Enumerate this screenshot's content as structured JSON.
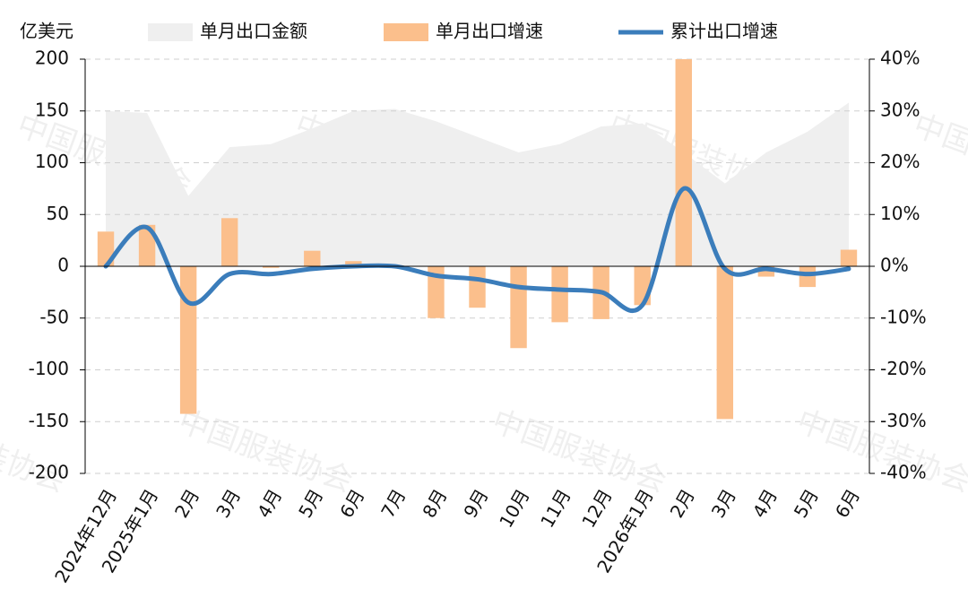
{
  "chart_data": {
    "type": "combo",
    "y_unit": "亿美元",
    "watermark": "中国服装协会",
    "categories": [
      "2024年12月",
      "2025年1月",
      "2月",
      "3月",
      "4月",
      "5月",
      "6月",
      "7月",
      "8月",
      "9月",
      "10月",
      "11月",
      "12月",
      "2026年1月",
      "2月",
      "3月",
      "4月",
      "5月",
      "6月"
    ],
    "series": [
      {
        "name": "单月出口金额",
        "type": "area",
        "color": "#efefef",
        "axis": "y",
        "values": [
          150,
          148,
          68,
          115,
          118,
          133,
          150,
          152,
          140,
          125,
          110,
          118,
          135,
          138,
          110,
          80,
          110,
          130,
          158
        ]
      },
      {
        "name": "单月出口增速",
        "type": "bar",
        "color": "#fbbf8c",
        "axis": "y2",
        "values": [
          6.7,
          8,
          -28.5,
          9.3,
          -0.3,
          3,
          1,
          -0.2,
          -10,
          -8,
          -15.8,
          -10.8,
          -10.2,
          -7.5,
          40,
          -29.5,
          -2,
          -4,
          3.2
        ]
      },
      {
        "name": "累计出口增速",
        "type": "line",
        "color": "#3b7dbb",
        "axis": "y2",
        "values": [
          0,
          7.5,
          -7,
          -1.5,
          -1.5,
          -0.5,
          0,
          0,
          -1.8,
          -2.5,
          -4,
          -4.5,
          -5,
          -7.5,
          15,
          -0.5,
          -0.5,
          -1.5,
          -0.5
        ]
      }
    ],
    "ylim": [
      -200,
      200
    ],
    "yticks": [
      -200,
      -150,
      -100,
      -50,
      0,
      50,
      100,
      150,
      200
    ],
    "y2lim": [
      -40,
      40
    ],
    "y2ticks": [
      {
        "value": -40,
        "label": "-40%"
      },
      {
        "value": -30,
        "label": "-30%"
      },
      {
        "value": -20,
        "label": "-20%"
      },
      {
        "value": -10,
        "label": "-10%"
      },
      {
        "value": 0,
        "label": "0%"
      },
      {
        "value": 10,
        "label": "10%"
      },
      {
        "value": 20,
        "label": "20%"
      },
      {
        "value": 30,
        "label": "30%"
      },
      {
        "value": 40,
        "label": "40%"
      }
    ],
    "grid": true
  }
}
